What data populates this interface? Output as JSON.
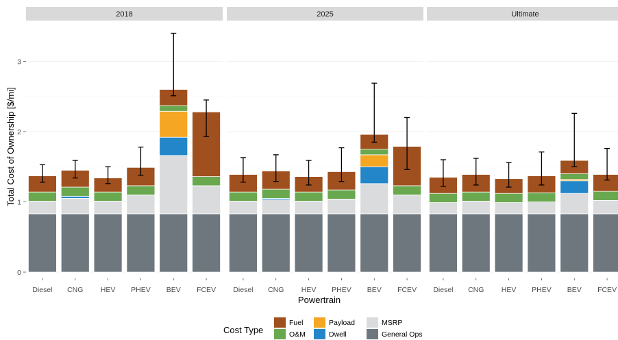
{
  "chart_data": {
    "type": "bar",
    "stacked": true,
    "facets": [
      "2018",
      "2025",
      "Ultimate"
    ],
    "categories": [
      "Diesel",
      "CNG",
      "HEV",
      "PHEV",
      "BEV",
      "FCEV"
    ],
    "xlabel": "Powertrain",
    "ylabel": "Total Cost of Ownership [$/mi]",
    "ylim": [
      0,
      3.5
    ],
    "yticks": [
      0,
      1,
      2,
      3
    ],
    "grid": true,
    "legend": {
      "title": "Cost Type",
      "position": "bottom",
      "entries": [
        "Fuel",
        "Payload",
        "MSRP",
        "O&M",
        "Dwell",
        "General Ops"
      ]
    },
    "colors": {
      "General Ops": "#6e777d",
      "MSRP": "#d9dbdc",
      "Dwell": "#2386c8",
      "Payload": "#f5a623",
      "O&M": "#6aa84f",
      "Fuel": "#a0501e"
    },
    "stack_order": [
      "General Ops",
      "MSRP",
      "Dwell",
      "Payload",
      "O&M",
      "Fuel"
    ],
    "panels": [
      {
        "facet": "2018",
        "bars": [
          {
            "category": "Diesel",
            "components": {
              "General Ops": 0.83,
              "MSRP": 0.18,
              "Dwell": 0,
              "Payload": 0,
              "O&M": 0.13,
              "Fuel": 0.23
            },
            "error": [
              1.28,
              1.53
            ]
          },
          {
            "category": "CNG",
            "components": {
              "General Ops": 0.83,
              "MSRP": 0.22,
              "Dwell": 0.03,
              "Payload": 0,
              "O&M": 0.13,
              "Fuel": 0.24
            },
            "error": [
              1.34,
              1.59
            ]
          },
          {
            "category": "HEV",
            "components": {
              "General Ops": 0.83,
              "MSRP": 0.18,
              "Dwell": 0,
              "Payload": 0,
              "O&M": 0.13,
              "Fuel": 0.2
            },
            "error": [
              1.26,
              1.5
            ]
          },
          {
            "category": "PHEV",
            "components": {
              "General Ops": 0.83,
              "MSRP": 0.27,
              "Dwell": 0,
              "Payload": 0,
              "O&M": 0.13,
              "Fuel": 0.26
            },
            "error": [
              1.38,
              1.78
            ]
          },
          {
            "category": "BEV",
            "components": {
              "General Ops": 0.83,
              "MSRP": 0.83,
              "Dwell": 0.26,
              "Payload": 0.37,
              "O&M": 0.08,
              "Fuel": 0.23
            },
            "error": [
              2.51,
              3.4
            ]
          },
          {
            "category": "FCEV",
            "components": {
              "General Ops": 0.83,
              "MSRP": 0.4,
              "Dwell": 0,
              "Payload": 0,
              "O&M": 0.13,
              "Fuel": 0.92
            },
            "error": [
              1.93,
              2.45
            ]
          }
        ]
      },
      {
        "facet": "2025",
        "bars": [
          {
            "category": "Diesel",
            "components": {
              "General Ops": 0.83,
              "MSRP": 0.18,
              "Dwell": 0,
              "Payload": 0,
              "O&M": 0.13,
              "Fuel": 0.25
            },
            "error": [
              1.28,
              1.63
            ]
          },
          {
            "category": "CNG",
            "components": {
              "General Ops": 0.83,
              "MSRP": 0.2,
              "Dwell": 0.02,
              "Payload": 0,
              "O&M": 0.13,
              "Fuel": 0.26
            },
            "error": [
              1.29,
              1.67
            ]
          },
          {
            "category": "HEV",
            "components": {
              "General Ops": 0.83,
              "MSRP": 0.18,
              "Dwell": 0,
              "Payload": 0,
              "O&M": 0.13,
              "Fuel": 0.22
            },
            "error": [
              1.24,
              1.59
            ]
          },
          {
            "category": "PHEV",
            "components": {
              "General Ops": 0.83,
              "MSRP": 0.21,
              "Dwell": 0,
              "Payload": 0,
              "O&M": 0.13,
              "Fuel": 0.26
            },
            "error": [
              1.29,
              1.77
            ]
          },
          {
            "category": "BEV",
            "components": {
              "General Ops": 0.83,
              "MSRP": 0.43,
              "Dwell": 0.24,
              "Payload": 0.17,
              "O&M": 0.08,
              "Fuel": 0.21
            },
            "error": [
              1.85,
              2.69
            ]
          },
          {
            "category": "FCEV",
            "components": {
              "General Ops": 0.83,
              "MSRP": 0.27,
              "Dwell": 0,
              "Payload": 0,
              "O&M": 0.13,
              "Fuel": 0.56
            },
            "error": [
              1.46,
              2.2
            ]
          }
        ]
      },
      {
        "facet": "Ultimate",
        "bars": [
          {
            "category": "Diesel",
            "components": {
              "General Ops": 0.83,
              "MSRP": 0.16,
              "Dwell": 0,
              "Payload": 0,
              "O&M": 0.13,
              "Fuel": 0.23
            },
            "error": [
              1.22,
              1.6
            ]
          },
          {
            "category": "CNG",
            "components": {
              "General Ops": 0.83,
              "MSRP": 0.18,
              "Dwell": 0,
              "Payload": 0,
              "O&M": 0.13,
              "Fuel": 0.25
            },
            "error": [
              1.24,
              1.62
            ]
          },
          {
            "category": "HEV",
            "components": {
              "General Ops": 0.83,
              "MSRP": 0.16,
              "Dwell": 0,
              "Payload": 0,
              "O&M": 0.13,
              "Fuel": 0.21
            },
            "error": [
              1.21,
              1.56
            ]
          },
          {
            "category": "PHEV",
            "components": {
              "General Ops": 0.83,
              "MSRP": 0.17,
              "Dwell": 0,
              "Payload": 0,
              "O&M": 0.13,
              "Fuel": 0.24
            },
            "error": [
              1.24,
              1.71
            ]
          },
          {
            "category": "BEV",
            "components": {
              "General Ops": 0.83,
              "MSRP": 0.29,
              "Dwell": 0.18,
              "Payload": 0.02,
              "O&M": 0.08,
              "Fuel": 0.19
            },
            "error": [
              1.5,
              2.26
            ]
          },
          {
            "category": "FCEV",
            "components": {
              "General Ops": 0.83,
              "MSRP": 0.19,
              "Dwell": 0,
              "Payload": 0,
              "O&M": 0.13,
              "Fuel": 0.24
            },
            "error": [
              1.31,
              1.76
            ]
          }
        ]
      }
    ]
  }
}
